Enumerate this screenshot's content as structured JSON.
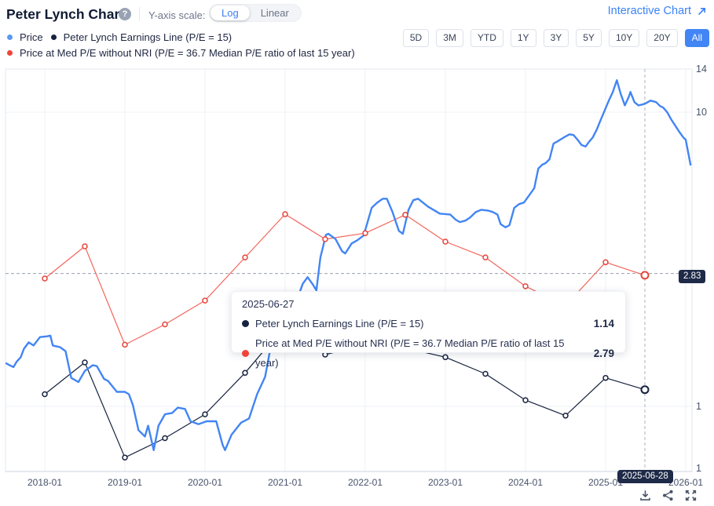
{
  "header": {
    "title": "Peter Lynch Chart",
    "help_glyph": "?",
    "y_axis_scale_label": "Y-axis scale:",
    "scale_options": [
      "Log",
      "Linear"
    ],
    "scale_selected": "Log",
    "interactive_chart_label": "Interactive Chart"
  },
  "legend": [
    {
      "label": "Price",
      "color": "#5b97f5"
    },
    {
      "label": "Peter Lynch Earnings Line (P/E = 15)",
      "color": "#16223f"
    },
    {
      "label": "Price at Med P/E without NRI (P/E = 36.7 Median P/E ratio of last 15 year)",
      "color": "#f04438"
    }
  ],
  "range_buttons": {
    "options": [
      "5D",
      "3M",
      "YTD",
      "1Y",
      "3Y",
      "5Y",
      "10Y",
      "20Y",
      "All"
    ],
    "selected": "All"
  },
  "tooltip": {
    "date": "2025-06-27",
    "rows": [
      {
        "label": "Peter Lynch Earnings Line (P/E = 15)",
        "value": "1.14",
        "color": "#16223f"
      },
      {
        "label": "Price at Med P/E without NRI (P/E = 36.7 Median P/E ratio of last 15 year)",
        "value": "2.79",
        "color": "#f04438"
      }
    ]
  },
  "crosshair": {
    "x_value": 2025.49,
    "x_badge": "2025-06-28",
    "y_value": 2.83,
    "y_badge": "2.83"
  },
  "chart_data": {
    "type": "line",
    "scale": "log",
    "grid": true,
    "legend_position": "top-left",
    "xlim": [
      2017.51,
      2026.08
    ],
    "ylim": [
      0.6,
      14
    ],
    "x_ticks": [
      "2018-01",
      "2019-01",
      "2020-01",
      "2021-01",
      "2022-01",
      "2023-01",
      "2024-01",
      "2025-01",
      "2026-01"
    ],
    "y_ticks": [
      {
        "label": "14",
        "value": 14,
        "grid": false
      },
      {
        "label": "10",
        "value": 10,
        "grid": true
      },
      {
        "label": "1",
        "value": 1,
        "grid": true
      },
      {
        "label": "1",
        "value": null,
        "at_bottom": true,
        "grid": false
      }
    ],
    "series": [
      {
        "name": "Price at Med P/E without NRI (P/E = 36.7 Median P/E ratio of last 15 year)",
        "color": "#f2655c",
        "marker_color": "#e8433a",
        "width": 1.2,
        "markers": true,
        "highlight_last": true,
        "points": [
          [
            2018.0,
            2.72
          ],
          [
            2018.5,
            3.5
          ],
          [
            2019.0,
            1.62
          ],
          [
            2019.5,
            1.9
          ],
          [
            2020.0,
            2.29
          ],
          [
            2020.5,
            3.21
          ],
          [
            2021.0,
            4.5
          ],
          [
            2021.5,
            3.7
          ],
          [
            2022.0,
            3.88
          ],
          [
            2022.5,
            4.48
          ],
          [
            2023.0,
            3.63
          ],
          [
            2023.5,
            3.21
          ],
          [
            2024.0,
            2.56
          ],
          [
            2024.5,
            2.2
          ],
          [
            2025.0,
            3.09
          ],
          [
            2025.49,
            2.79
          ]
        ]
      },
      {
        "name": "Peter Lynch Earnings Line (P/E = 15)",
        "color": "#16223f",
        "marker_color": "#16223f",
        "width": 1.2,
        "markers": true,
        "highlight_last": true,
        "points": [
          [
            2018.0,
            1.1
          ],
          [
            2018.5,
            1.41
          ],
          [
            2019.0,
            0.67
          ],
          [
            2019.5,
            0.78
          ],
          [
            2020.0,
            0.94
          ],
          [
            2020.5,
            1.3
          ],
          [
            2021.0,
            1.88
          ],
          [
            2021.5,
            1.5
          ],
          [
            2022.0,
            1.62
          ],
          [
            2022.5,
            1.58
          ],
          [
            2023.0,
            1.47
          ],
          [
            2023.5,
            1.29
          ],
          [
            2024.0,
            1.05
          ],
          [
            2024.5,
            0.93
          ],
          [
            2025.0,
            1.25
          ],
          [
            2025.49,
            1.14
          ]
        ]
      },
      {
        "name": "Price",
        "color": "#4285f4",
        "width": 2.4,
        "markers": false,
        "points": [
          [
            2017.52,
            1.4
          ],
          [
            2017.56,
            1.38
          ],
          [
            2017.61,
            1.36
          ],
          [
            2017.65,
            1.42
          ],
          [
            2017.7,
            1.47
          ],
          [
            2017.74,
            1.57
          ],
          [
            2017.8,
            1.65
          ],
          [
            2017.86,
            1.61
          ],
          [
            2017.94,
            1.72
          ],
          [
            2018.03,
            1.73
          ],
          [
            2018.07,
            1.74
          ],
          [
            2018.1,
            1.61
          ],
          [
            2018.19,
            1.59
          ],
          [
            2018.26,
            1.54
          ],
          [
            2018.33,
            1.25
          ],
          [
            2018.42,
            1.21
          ],
          [
            2018.5,
            1.32
          ],
          [
            2018.6,
            1.38
          ],
          [
            2018.65,
            1.37
          ],
          [
            2018.74,
            1.24
          ],
          [
            2018.79,
            1.22
          ],
          [
            2018.9,
            1.12
          ],
          [
            2019.0,
            1.12
          ],
          [
            2019.05,
            1.1
          ],
          [
            2019.1,
            1.01
          ],
          [
            2019.17,
            0.83
          ],
          [
            2019.25,
            0.79
          ],
          [
            2019.29,
            0.86
          ],
          [
            2019.36,
            0.71
          ],
          [
            2019.42,
            0.86
          ],
          [
            2019.5,
            0.94
          ],
          [
            2019.59,
            0.95
          ],
          [
            2019.66,
            0.99
          ],
          [
            2019.75,
            0.98
          ],
          [
            2019.82,
            0.89
          ],
          [
            2019.92,
            0.87
          ],
          [
            2020.02,
            0.89
          ],
          [
            2020.14,
            0.89
          ],
          [
            2020.22,
            0.74
          ],
          [
            2020.25,
            0.71
          ],
          [
            2020.33,
            0.8
          ],
          [
            2020.45,
            0.88
          ],
          [
            2020.55,
            0.91
          ],
          [
            2020.65,
            1.1
          ],
          [
            2020.75,
            1.26
          ],
          [
            2020.82,
            1.59
          ],
          [
            2020.87,
            1.72
          ],
          [
            2020.97,
            1.94
          ],
          [
            2021.07,
            2.13
          ],
          [
            2021.15,
            2.31
          ],
          [
            2021.22,
            2.61
          ],
          [
            2021.28,
            2.75
          ],
          [
            2021.34,
            2.61
          ],
          [
            2021.39,
            2.48
          ],
          [
            2021.44,
            3.21
          ],
          [
            2021.51,
            3.83
          ],
          [
            2021.54,
            3.86
          ],
          [
            2021.63,
            3.7
          ],
          [
            2021.71,
            3.37
          ],
          [
            2021.75,
            3.31
          ],
          [
            2021.83,
            3.58
          ],
          [
            2021.9,
            3.67
          ],
          [
            2021.98,
            3.81
          ],
          [
            2022.08,
            4.73
          ],
          [
            2022.15,
            4.93
          ],
          [
            2022.22,
            5.08
          ],
          [
            2022.27,
            5.08
          ],
          [
            2022.34,
            4.58
          ],
          [
            2022.42,
            3.95
          ],
          [
            2022.47,
            3.86
          ],
          [
            2022.54,
            4.66
          ],
          [
            2022.6,
            5.02
          ],
          [
            2022.66,
            5.08
          ],
          [
            2022.78,
            4.78
          ],
          [
            2022.93,
            4.52
          ],
          [
            2023.06,
            4.49
          ],
          [
            2023.13,
            4.31
          ],
          [
            2023.18,
            4.23
          ],
          [
            2023.25,
            4.28
          ],
          [
            2023.31,
            4.39
          ],
          [
            2023.38,
            4.58
          ],
          [
            2023.45,
            4.66
          ],
          [
            2023.53,
            4.63
          ],
          [
            2023.59,
            4.58
          ],
          [
            2023.65,
            4.49
          ],
          [
            2023.69,
            4.16
          ],
          [
            2023.75,
            4.06
          ],
          [
            2023.8,
            4.13
          ],
          [
            2023.86,
            4.73
          ],
          [
            2023.92,
            4.87
          ],
          [
            2023.98,
            4.93
          ],
          [
            2024.04,
            5.19
          ],
          [
            2024.11,
            5.52
          ],
          [
            2024.16,
            6.43
          ],
          [
            2024.21,
            6.63
          ],
          [
            2024.25,
            6.71
          ],
          [
            2024.3,
            6.92
          ],
          [
            2024.35,
            7.82
          ],
          [
            2024.4,
            7.96
          ],
          [
            2024.48,
            8.21
          ],
          [
            2024.55,
            8.41
          ],
          [
            2024.6,
            8.36
          ],
          [
            2024.65,
            8.06
          ],
          [
            2024.7,
            7.73
          ],
          [
            2024.75,
            7.64
          ],
          [
            2024.79,
            7.91
          ],
          [
            2024.84,
            8.21
          ],
          [
            2024.89,
            8.73
          ],
          [
            2024.94,
            9.44
          ],
          [
            2024.99,
            10.16
          ],
          [
            2025.04,
            10.95
          ],
          [
            2025.09,
            11.72
          ],
          [
            2025.14,
            12.85
          ],
          [
            2025.19,
            11.5
          ],
          [
            2025.24,
            10.55
          ],
          [
            2025.29,
            11.29
          ],
          [
            2025.31,
            11.72
          ],
          [
            2025.36,
            10.82
          ],
          [
            2025.41,
            10.55
          ],
          [
            2025.46,
            10.62
          ],
          [
            2025.51,
            10.75
          ],
          [
            2025.56,
            10.95
          ],
          [
            2025.63,
            10.82
          ],
          [
            2025.68,
            10.49
          ],
          [
            2025.72,
            10.36
          ],
          [
            2025.77,
            9.99
          ],
          [
            2025.82,
            9.44
          ],
          [
            2025.87,
            9.0
          ],
          [
            2025.92,
            8.57
          ],
          [
            2025.97,
            8.21
          ],
          [
            2026.0,
            8.06
          ],
          [
            2026.06,
            6.63
          ]
        ]
      }
    ]
  },
  "footer_icons": [
    "download-icon",
    "share-icon",
    "fullscreen-icon"
  ]
}
